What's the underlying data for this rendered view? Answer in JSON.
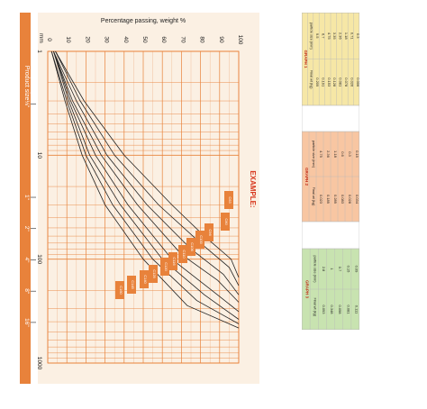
{
  "chart_data": {
    "type": "line",
    "title": "Percentage passing, weight %",
    "xlabel": "Product size",
    "ylabel": "Percentage passing, weight %",
    "x_unit": "mm",
    "x_scale": "log",
    "xlim": [
      1,
      1000
    ],
    "ylim": [
      0,
      100
    ],
    "x_ticks": [
      "1",
      "10",
      "100",
      "1000"
    ],
    "y_ticks": [
      "0",
      "10",
      "20",
      "30",
      "40",
      "50",
      "60",
      "70",
      "80",
      "90",
      "100"
    ],
    "inch_ticks": [
      {
        "label": "⅛\"",
        "mm": 3.2
      },
      {
        "label": "1\"",
        "mm": 25.4
      },
      {
        "label": "2\"",
        "mm": 50.8
      },
      {
        "label": "4\"",
        "mm": 101.6
      },
      {
        "label": "8\"",
        "mm": 203.2
      },
      {
        "label": "16\"",
        "mm": 406.4
      }
    ],
    "grid": true,
    "series": [
      {
        "x": [
          1,
          3,
          10,
          30,
          60,
          100,
          150
        ],
        "values": [
          4,
          19,
          40,
          65,
          82,
          96,
          100
        ]
      },
      {
        "x": [
          1,
          3,
          10,
          30,
          70,
          120,
          180
        ],
        "values": [
          4,
          17,
          35,
          58,
          80,
          95,
          100
        ]
      },
      {
        "x": [
          1,
          3,
          10,
          30,
          80,
          140,
          220
        ],
        "values": [
          3,
          15,
          31,
          52,
          75,
          92,
          100
        ]
      },
      {
        "x": [
          1,
          3,
          10,
          30,
          90,
          160,
          260
        ],
        "values": [
          3,
          13,
          28,
          47,
          70,
          89,
          100
        ]
      },
      {
        "x": [
          1,
          3,
          10,
          30,
          100,
          200,
          320
        ],
        "values": [
          3,
          12,
          25,
          42,
          65,
          86,
          100
        ]
      },
      {
        "x": [
          1,
          3,
          10,
          30,
          100,
          220,
          380
        ],
        "values": [
          3,
          11,
          22,
          38,
          60,
          82,
          100
        ]
      },
      {
        "x": [
          1,
          3,
          10,
          30,
          100,
          250,
          420
        ],
        "values": [
          2,
          10,
          20,
          34,
          55,
          78,
          100
        ]
      },
      {
        "x": [
          1,
          3,
          10,
          30,
          100,
          280,
          460
        ],
        "values": [
          2,
          9,
          18,
          30,
          50,
          73,
          100
        ]
      }
    ],
    "example_title": "EXAMPLE:",
    "example_boxes": [
      "C63",
      "C80",
      "C96",
      "C100",
      "C106",
      "C110",
      "C116",
      "C120",
      "C125",
      "C140",
      "C145",
      "C160"
    ],
    "colors": {
      "plot_bg": "#fbf0e3",
      "grid": "#e8823b",
      "curve": "#222222",
      "axis_bar": "#e8823b",
      "example_box": "#e8823b",
      "example_title": "#d83a20"
    }
  },
  "tables": {
    "graph1": {
      "title": "GRAPH 1",
      "header_size": "particle size (mm)",
      "header_frac": "Final wt (kg)",
      "rows": [
        [
          "9.5",
          "0.209"
        ],
        [
          "6.7",
          "0.191"
        ],
        [
          "4.75",
          "0.153"
        ],
        [
          "3.35",
          "0.128"
        ],
        [
          "2.36",
          "0.081"
        ],
        [
          "1.18",
          "0.078"
        ],
        [
          "0.71",
          "0.026"
        ],
        [
          "0.3",
          "0.006"
        ]
      ]
    },
    "graph2": {
      "title": "GRAPH 2",
      "header_size": "particle size (mm)",
      "header_frac": "Final wt (kg)",
      "rows": [
        [
          "4.75",
          "0.023"
        ],
        [
          "2.36",
          "0.189"
        ],
        [
          "1.18",
          "0.289"
        ],
        [
          "0.6",
          "0.083"
        ],
        [
          "0.3",
          "0.028"
        ],
        [
          "0.15",
          "0.034"
        ]
      ]
    },
    "graph3": {
      "title": "GRAPH 3",
      "header_size": "particle size (mm)",
      "header_frac": "Final wt (kg)",
      "rows": [
        [
          "2.8",
          "0.093"
        ],
        [
          "1",
          "0.348"
        ],
        [
          "0.7",
          "0.058"
        ],
        [
          "0.15",
          "0.081"
        ],
        [
          "0.09",
          "0.111"
        ]
      ]
    },
    "colors": {
      "graph1": "#f6e7a6",
      "graph2": "#f8c6a2",
      "graph3": "#c8e3b0",
      "border": "#b8b8b8"
    }
  }
}
